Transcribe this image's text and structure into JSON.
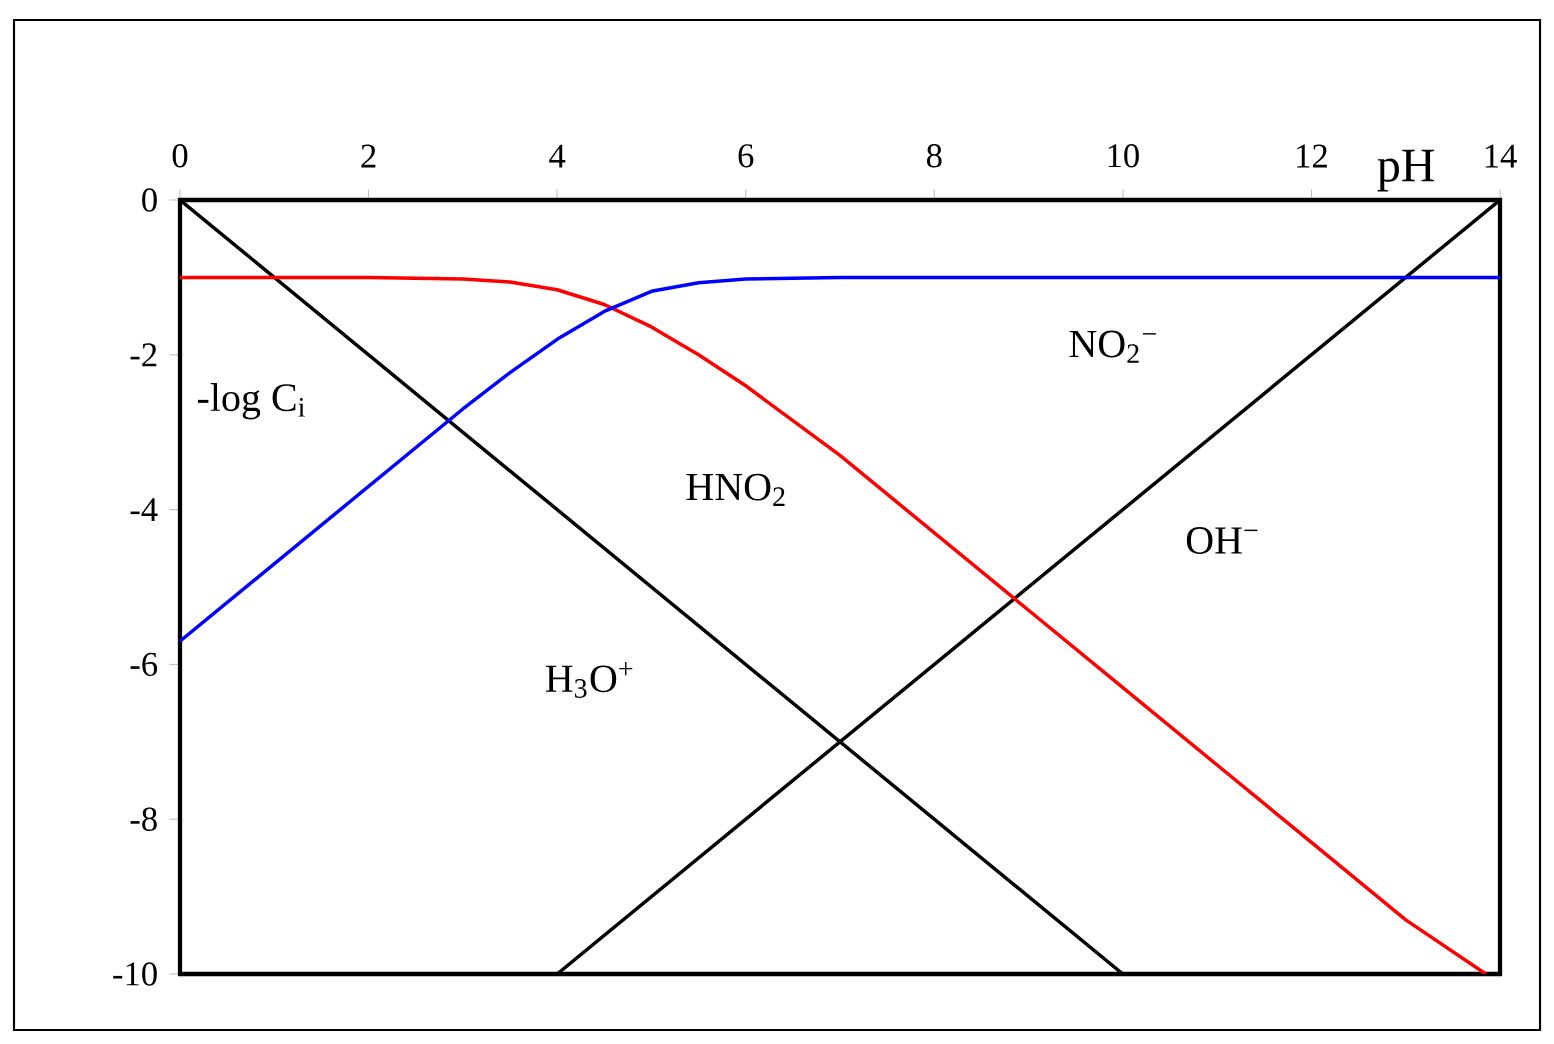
{
  "chart_data": {
    "type": "line",
    "xlabel": "pH",
    "ylabel": "-log C$_{i}$",
    "xlim": [
      0,
      14
    ],
    "ylim": [
      -10,
      0
    ],
    "xticks": [
      0,
      2,
      4,
      6,
      8,
      10,
      12,
      14
    ],
    "yticks": [
      0,
      -2,
      -4,
      -6,
      -8,
      -10
    ],
    "grid": false,
    "series": [
      {
        "name": "H$_{3}$O$^{+}$",
        "color": "#000000",
        "x": [
          0,
          10
        ],
        "values": [
          0,
          -10
        ]
      },
      {
        "name": "OH$^{−}$",
        "color": "#000000",
        "x": [
          4,
          14
        ],
        "values": [
          -10,
          0
        ]
      },
      {
        "name": "HNO$_{2}$",
        "color": "#ff0000",
        "x": [
          0,
          1,
          2,
          3,
          3.5,
          4,
          4.5,
          5,
          5.5,
          6,
          7,
          8,
          9,
          10,
          11,
          12,
          13,
          13.85
        ],
        "values": [
          -1,
          -1,
          -1,
          -1.02,
          -1.06,
          -1.16,
          -1.35,
          -1.64,
          -2.0,
          -2.4,
          -3.3,
          -4.3,
          -5.3,
          -6.3,
          -7.3,
          -8.3,
          -9.3,
          -10
        ]
      },
      {
        "name": "NO$_{2}$$^{−}$",
        "color": "#0000ff",
        "x": [
          0,
          1,
          2,
          3,
          3.5,
          4,
          4.5,
          5,
          5.5,
          6,
          7,
          8,
          10,
          12,
          14
        ],
        "values": [
          -5.7,
          -4.7,
          -3.7,
          -2.7,
          -2.23,
          -1.8,
          -1.44,
          -1.18,
          -1.07,
          -1.02,
          -1.0,
          -1.0,
          -1.0,
          -1.0,
          -1.0
        ]
      }
    ]
  }
}
